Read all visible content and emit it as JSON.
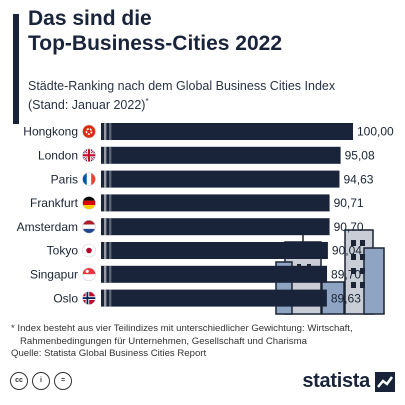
{
  "header": {
    "title_line1": "Das sind die",
    "title_line2": "Top-Business-Cities 2022",
    "subtitle_line1": "Städte-Ranking nach dem Global Business Cities Index",
    "subtitle_line2": "(Stand: Januar 2022)",
    "subtitle_mark": "*"
  },
  "chart_data": {
    "type": "bar",
    "orientation": "horizontal",
    "categories": [
      "Hongkong",
      "London",
      "Paris",
      "Frankfurt",
      "Amsterdam",
      "Tokyo",
      "Singapur",
      "Oslo"
    ],
    "values": [
      100.0,
      95.08,
      94.63,
      90.71,
      90.7,
      90.04,
      89.7,
      89.63
    ],
    "value_labels": [
      "100,00",
      "95,08",
      "94,63",
      "90,71",
      "90,70",
      "90,04",
      "89,70",
      "89,63"
    ],
    "flag_icons": [
      "hongkong-flag-icon",
      "uk-flag-icon",
      "france-flag-icon",
      "germany-flag-icon",
      "netherlands-flag-icon",
      "japan-flag-icon",
      "singapore-flag-icon",
      "norway-flag-icon"
    ],
    "bar_color": "#19233a",
    "title": "",
    "xlabel": "",
    "ylabel": ""
  },
  "footer": {
    "footnote_line1": "* Index besteht aus vier Teilindizes mit unterschiedlicher Gewichtung: Wirtschaft,",
    "footnote_line2": "Rahmenbedingungen für Unternehmen, Gesellschaft und Charisma",
    "source": "Quelle: Statista Global Business Cities Report",
    "license_icons": [
      "cc-icon",
      "by-icon",
      "equals-icon"
    ],
    "license_glyphs": [
      "cc",
      "i",
      "="
    ],
    "brand_name": "statista"
  },
  "colors": {
    "navy": "#19233a",
    "skyline_blue": "#8fa3c2",
    "skyline_grey": "#c9ced6"
  }
}
